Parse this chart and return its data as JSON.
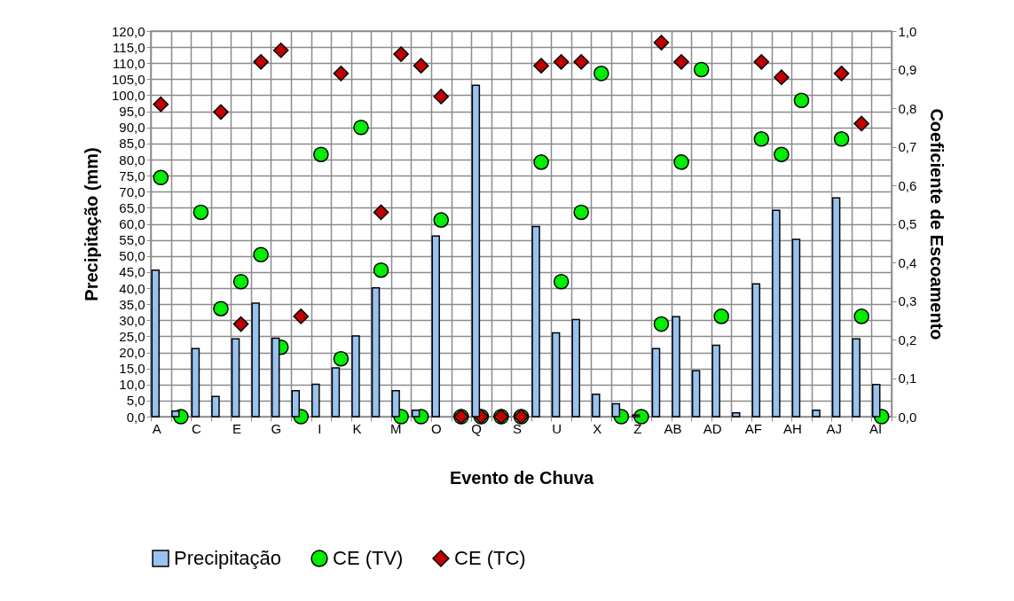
{
  "chart_data": {
    "type": "bar",
    "xlabel": "Evento de Chuva",
    "ylabel": "Precipitação (mm)",
    "y2label": "Coeficiente de Escoamento",
    "categories": [
      "A",
      null,
      "C",
      null,
      "E",
      null,
      "G",
      null,
      "I",
      null,
      "K",
      null,
      "M",
      null,
      "O",
      null,
      "Q",
      null,
      "S",
      null,
      "U",
      null,
      "X",
      null,
      "Z",
      null,
      "AB",
      null,
      "AD",
      null,
      "AF",
      null,
      "AH",
      null,
      "AJ",
      null,
      "AI"
    ],
    "series": [
      {
        "name": "Precipitação",
        "color": "#99c2f0",
        "values": [
          45.6,
          1.7,
          21.2,
          6.3,
          24.2,
          35.3,
          24.4,
          8.1,
          10.1,
          15.2,
          25.1,
          40.1,
          8.1,
          2.0,
          56.2,
          null,
          103.1,
          null,
          null,
          59.2,
          26.1,
          30.2,
          7.0,
          4.0,
          0.5,
          21.2,
          31.1,
          14.3,
          22.2,
          1.2,
          41.3,
          64.2,
          55.2,
          2.0,
          68.1,
          24.2,
          10.0
        ]
      },
      {
        "name": "CE (TV)",
        "type": "scatter",
        "axis": "y2",
        "marker": "circle",
        "color": "#00ee00",
        "values": [
          0.62,
          0,
          0.53,
          0.28,
          0.35,
          0.42,
          0.18,
          0,
          0.68,
          0.15,
          0.75,
          0.38,
          0,
          0,
          0.51,
          0,
          0,
          0,
          0,
          0.66,
          0.35,
          0.53,
          0.89,
          0,
          0,
          0.24,
          0.66,
          0.9,
          0.26,
          null,
          0.72,
          0.68,
          0.82,
          null,
          0.72,
          0.26,
          0
        ]
      },
      {
        "name": "CE (TC)",
        "type": "scatter",
        "axis": "y2",
        "marker": "diamond",
        "color": "#c00000",
        "values": [
          0.81,
          null,
          null,
          0.79,
          0.24,
          0.92,
          0.95,
          0.26,
          null,
          0.89,
          null,
          0.53,
          0.94,
          0.91,
          0.83,
          0,
          0,
          0,
          0,
          0.91,
          0.92,
          0.92,
          null,
          null,
          null,
          0.97,
          0.92,
          null,
          null,
          null,
          0.92,
          0.88,
          null,
          null,
          0.89,
          0.76,
          null
        ]
      }
    ],
    "ylim": [
      0,
      120
    ],
    "yticks": [
      {
        "value": 0,
        "label": "0,0"
      },
      {
        "value": 5,
        "label": "5,0"
      },
      {
        "value": 10,
        "label": "10,0"
      },
      {
        "value": 15,
        "label": "15,0"
      },
      {
        "value": 20,
        "label": "20,0"
      },
      {
        "value": 25,
        "label": "25,0"
      },
      {
        "value": 30,
        "label": "30,0"
      },
      {
        "value": 35,
        "label": "35,0"
      },
      {
        "value": 40,
        "label": "40,0"
      },
      {
        "value": 45,
        "label": "45,0"
      },
      {
        "value": 50,
        "label": "50,0"
      },
      {
        "value": 55,
        "label": "55,0"
      },
      {
        "value": 60,
        "label": "60,0"
      },
      {
        "value": 65,
        "label": "65,0"
      },
      {
        "value": 70,
        "label": "70,0"
      },
      {
        "value": 75,
        "label": "75,0"
      },
      {
        "value": 80,
        "label": "80,0"
      },
      {
        "value": 85,
        "label": "85,0"
      },
      {
        "value": 90,
        "label": "90,0"
      },
      {
        "value": 95,
        "label": "95,0"
      },
      {
        "value": 100,
        "label": "100,0"
      },
      {
        "value": 105,
        "label": "105,0"
      },
      {
        "value": 110,
        "label": "110,0"
      },
      {
        "value": 115,
        "label": "115,0"
      },
      {
        "value": 120,
        "label": "120,0"
      }
    ],
    "y2lim": [
      0,
      1
    ],
    "y2ticks": [
      {
        "value": 0,
        "label": "0,0"
      },
      {
        "value": 0.1,
        "label": "0,1"
      },
      {
        "value": 0.2,
        "label": "0,2"
      },
      {
        "value": 0.3,
        "label": "0,3"
      },
      {
        "value": 0.4,
        "label": "0,4"
      },
      {
        "value": 0.5,
        "label": "0,5"
      },
      {
        "value": 0.6,
        "label": "0,6"
      },
      {
        "value": 0.7,
        "label": "0,7"
      },
      {
        "value": 0.8,
        "label": "0,8"
      },
      {
        "value": 0.9,
        "label": "0,9"
      },
      {
        "value": 1,
        "label": "1,0"
      }
    ],
    "grid": true,
    "legend": "bottom"
  }
}
